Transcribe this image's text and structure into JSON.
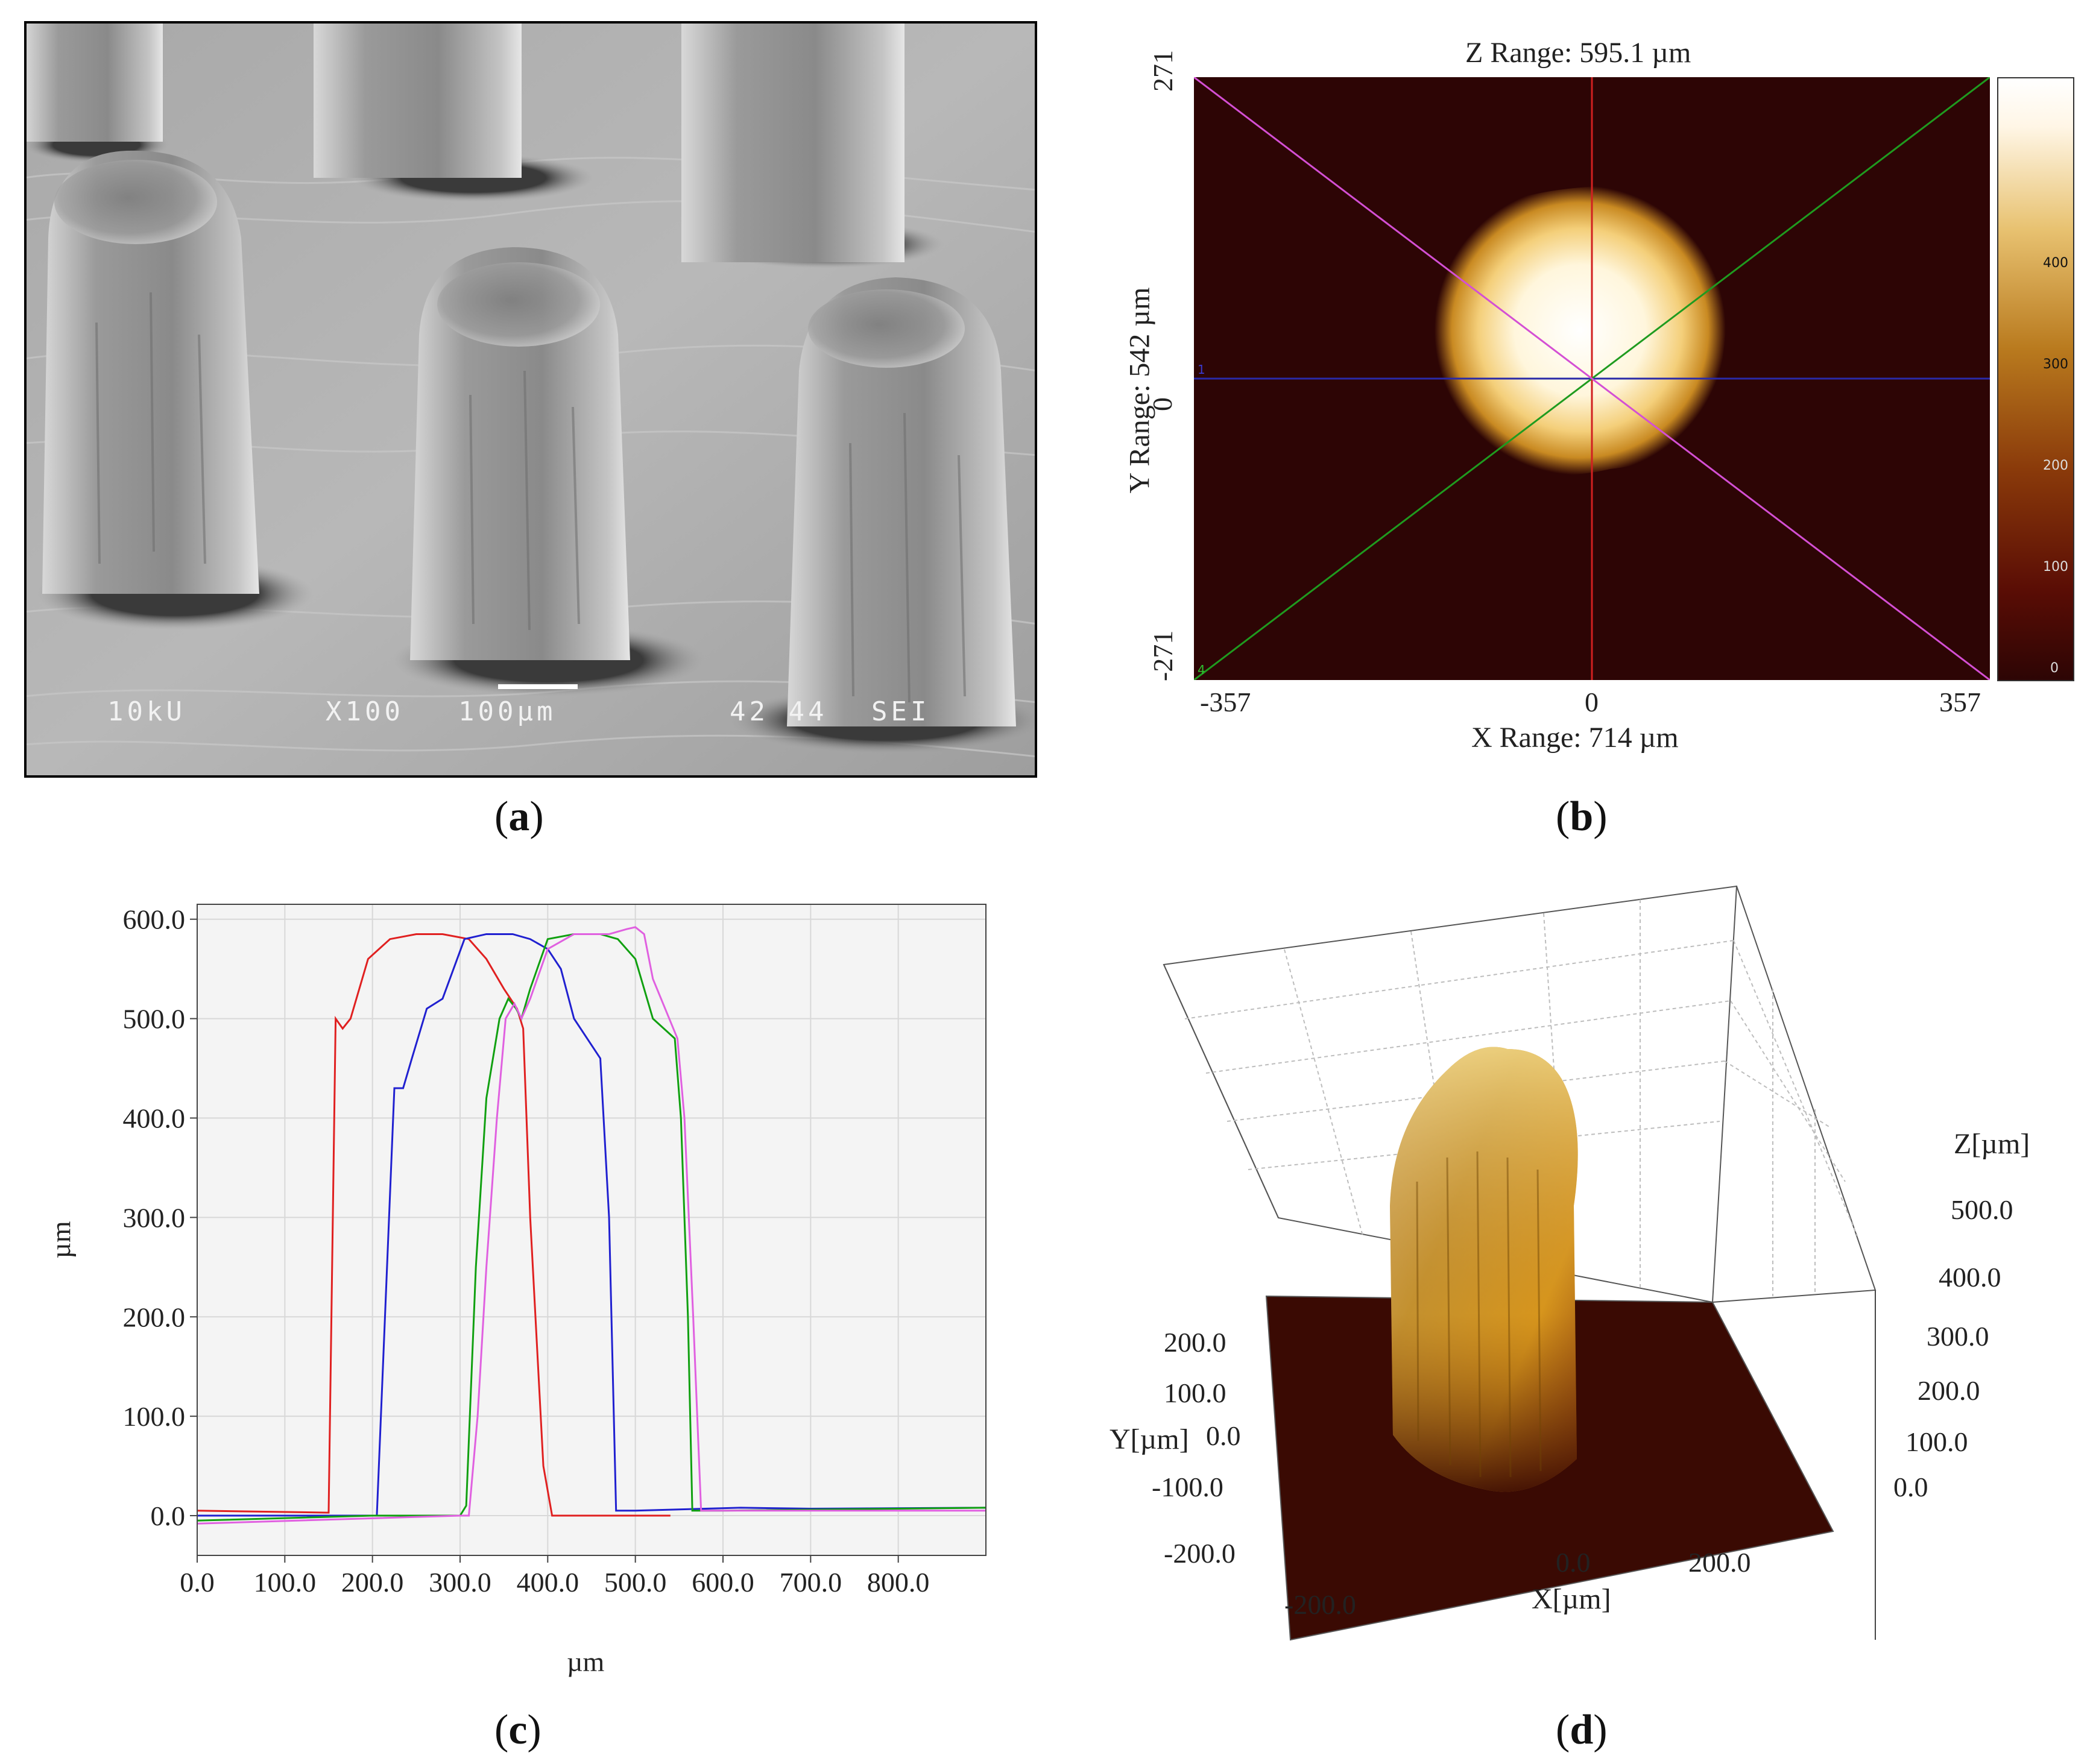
{
  "panels": {
    "a": {
      "caption": "a",
      "sem": {
        "voltage": "10kU",
        "magnification": "X100",
        "scale": "100µm",
        "id": "42 44",
        "mode": "SEI"
      }
    },
    "b": {
      "caption": "b",
      "z_range": "Z Range:  595.1 µm",
      "x_range": "X Range:   714 µm",
      "y_range": "Y Range:   542 µm",
      "x_ticks": [
        "-357",
        "0",
        "357"
      ],
      "y_ticks": [
        "271",
        "0",
        "-271"
      ],
      "colorbar_ticks": [
        "400",
        "300",
        "200",
        "100",
        "0"
      ],
      "markers": [
        "1",
        "4"
      ],
      "colors": {
        "bg": "#2d0505",
        "red": "#d12020",
        "blue": "#2a2aa8",
        "green": "#1f9b1f",
        "magenta": "#d44fd4"
      }
    },
    "c": {
      "caption": "c"
    },
    "d": {
      "caption": "d",
      "z_label": "Z[µm]",
      "y_label": "Y[µm]",
      "x_label": "X[µm]",
      "z_ticks": [
        "500.0",
        "400.0",
        "300.0",
        "200.0",
        "100.0",
        "0.0"
      ],
      "y_ticks": [
        "200.0",
        "100.0",
        "0.0",
        "-100.0",
        "-200.0"
      ],
      "x_ticks": [
        "-200.0",
        "0.0",
        "200.0"
      ]
    }
  },
  "chart_data": {
    "type": "line",
    "title": "",
    "xlabel": "µm",
    "ylabel": "µm",
    "xlim": [
      0,
      900
    ],
    "ylim": [
      -40,
      615
    ],
    "x_ticks": [
      0,
      100,
      200,
      300,
      400,
      500,
      600,
      700,
      800
    ],
    "y_ticks": [
      0,
      100,
      200,
      300,
      400,
      500,
      600
    ],
    "x_tick_labels": [
      "0.0",
      "100.0",
      "200.0",
      "300.0",
      "400.0",
      "500.0",
      "600.0",
      "700.0",
      "800.0"
    ],
    "y_tick_labels": [
      "0.0",
      "100.0",
      "200.0",
      "300.0",
      "400.0",
      "500.0",
      "600.0"
    ],
    "grid": true,
    "series": [
      {
        "name": "red",
        "color": "#e02020",
        "x": [
          0,
          150,
          158,
          166,
          175,
          195,
          220,
          250,
          280,
          310,
          330,
          350,
          365,
          372,
          380,
          395,
          405,
          420,
          480,
          540
        ],
        "y": [
          5,
          3,
          500,
          490,
          500,
          560,
          580,
          585,
          585,
          580,
          560,
          530,
          510,
          490,
          300,
          50,
          0,
          0,
          0,
          0
        ]
      },
      {
        "name": "blue",
        "color": "#2020d0",
        "x": [
          0,
          200,
          205,
          225,
          235,
          245,
          262,
          280,
          305,
          330,
          360,
          380,
          400,
          415,
          430,
          460,
          470,
          478,
          500,
          620,
          700,
          900
        ],
        "y": [
          0,
          0,
          0,
          430,
          430,
          460,
          510,
          520,
          580,
          585,
          585,
          580,
          570,
          550,
          500,
          460,
          300,
          5,
          5,
          8,
          7,
          8
        ],
        "dx": 0
      },
      {
        "name": "green",
        "color": "#10a010",
        "x": [
          0,
          200,
          300,
          307,
          318,
          330,
          345,
          355,
          364,
          370,
          380,
          400,
          430,
          460,
          480,
          500,
          520,
          545,
          552,
          560,
          565,
          600,
          900
        ],
        "y": [
          -5,
          0,
          0,
          10,
          250,
          420,
          500,
          520,
          510,
          500,
          530,
          580,
          585,
          585,
          580,
          560,
          500,
          480,
          400,
          200,
          5,
          5,
          8
        ]
      },
      {
        "name": "magenta",
        "color": "#e060e0",
        "x": [
          0,
          300,
          310,
          320,
          330,
          342,
          352,
          362,
          370,
          380,
          400,
          430,
          470,
          490,
          500,
          510,
          520,
          548,
          556,
          566,
          575,
          620,
          900
        ],
        "y": [
          -8,
          0,
          0,
          100,
          250,
          400,
          500,
          515,
          500,
          520,
          570,
          585,
          585,
          590,
          592,
          585,
          540,
          480,
          400,
          200,
          5,
          5,
          5
        ]
      }
    ]
  }
}
